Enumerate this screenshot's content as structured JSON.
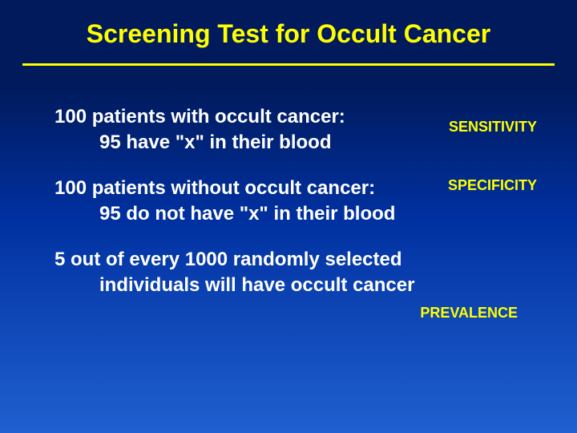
{
  "title": "Screening Test for Occult Cancer",
  "blocks": [
    {
      "line1": "100 patients with occult cancer:",
      "line2": "95 have \"x\" in their blood",
      "tag": "SENSITIVITY",
      "tagClass": "tag-sens"
    },
    {
      "line1": "100 patients without occult cancer:",
      "line2": "95 do not have \"x\" in their blood",
      "tag": "SPECIFICITY",
      "tagClass": "tag-spec"
    },
    {
      "line1": "5 out of every 1000 randomly selected",
      "line2": "individuals will have occult cancer",
      "tag": "PREVALENCE",
      "tagClass": "tag-prev"
    }
  ],
  "colors": {
    "title": "#ffff00",
    "body": "#ffffff",
    "tag": "#ffff00",
    "divider": "#ffff00",
    "bgTop": "#001a5c",
    "bgBottom": "#2060d0"
  },
  "fonts": {
    "titleSize": 32,
    "bodySize": 24,
    "tagSize": 18
  }
}
